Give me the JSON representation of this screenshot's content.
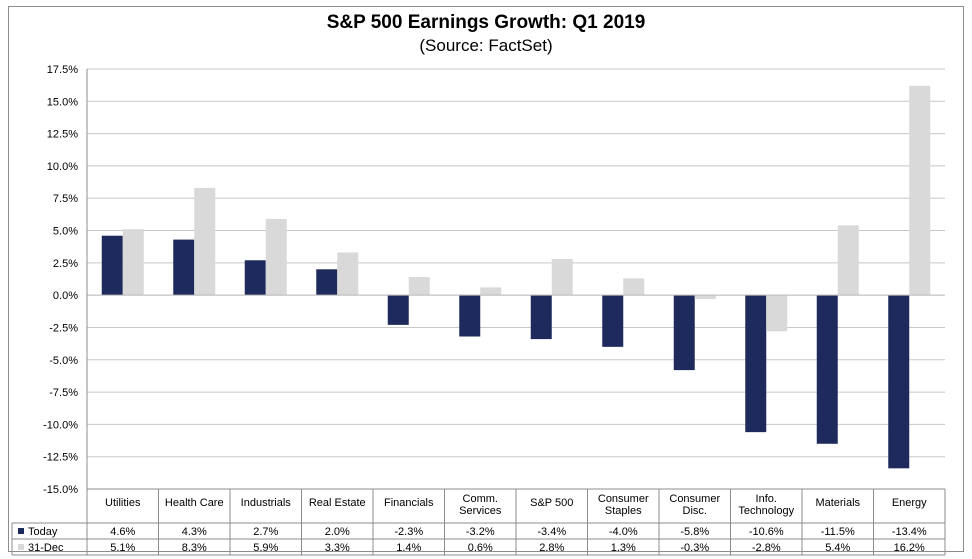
{
  "chart_data": {
    "type": "bar",
    "title": "S&P 500 Earnings Growth: Q1 2019",
    "subtitle": "(Source: FactSet)",
    "categories": [
      "Utilities",
      "Health Care",
      "Industrials",
      "Real Estate",
      "Financials",
      "Comm. Services",
      "S&P 500",
      "Consumer Staples",
      "Consumer Disc.",
      "Info. Technology",
      "Materials",
      "Energy"
    ],
    "series": [
      {
        "name": "Today",
        "color": "#1f2a5c",
        "values": [
          4.6,
          4.3,
          2.7,
          2.0,
          -2.3,
          -3.2,
          -3.4,
          -4.0,
          -5.8,
          -10.6,
          -11.5,
          -13.4
        ],
        "labels": [
          "4.6%",
          "4.3%",
          "2.7%",
          "2.0%",
          "-2.3%",
          "-3.2%",
          "-3.4%",
          "-4.0%",
          "-5.8%",
          "-10.6%",
          "-11.5%",
          "-13.4%"
        ]
      },
      {
        "name": "31-Dec",
        "color": "#d9d9d9",
        "values": [
          5.1,
          8.3,
          5.9,
          3.3,
          1.4,
          0.6,
          2.8,
          1.3,
          -0.3,
          -2.8,
          5.4,
          16.2
        ],
        "labels": [
          "5.1%",
          "8.3%",
          "5.9%",
          "3.3%",
          "1.4%",
          "0.6%",
          "2.8%",
          "1.3%",
          "-0.3%",
          "-2.8%",
          "5.4%",
          "16.2%"
        ]
      }
    ],
    "ylim": [
      -15.0,
      17.5
    ],
    "yticks": [
      "17.5%",
      "15.0%",
      "12.5%",
      "10.0%",
      "7.5%",
      "5.0%",
      "2.5%",
      "0.0%",
      "-2.5%",
      "-5.0%",
      "-7.5%",
      "-10.0%",
      "-12.5%",
      "-15.0%"
    ],
    "ytick_values": [
      17.5,
      15.0,
      12.5,
      10.0,
      7.5,
      5.0,
      2.5,
      0.0,
      -2.5,
      -5.0,
      -7.5,
      -10.0,
      -12.5,
      -15.0
    ],
    "grid": true,
    "legend": "data-table"
  }
}
